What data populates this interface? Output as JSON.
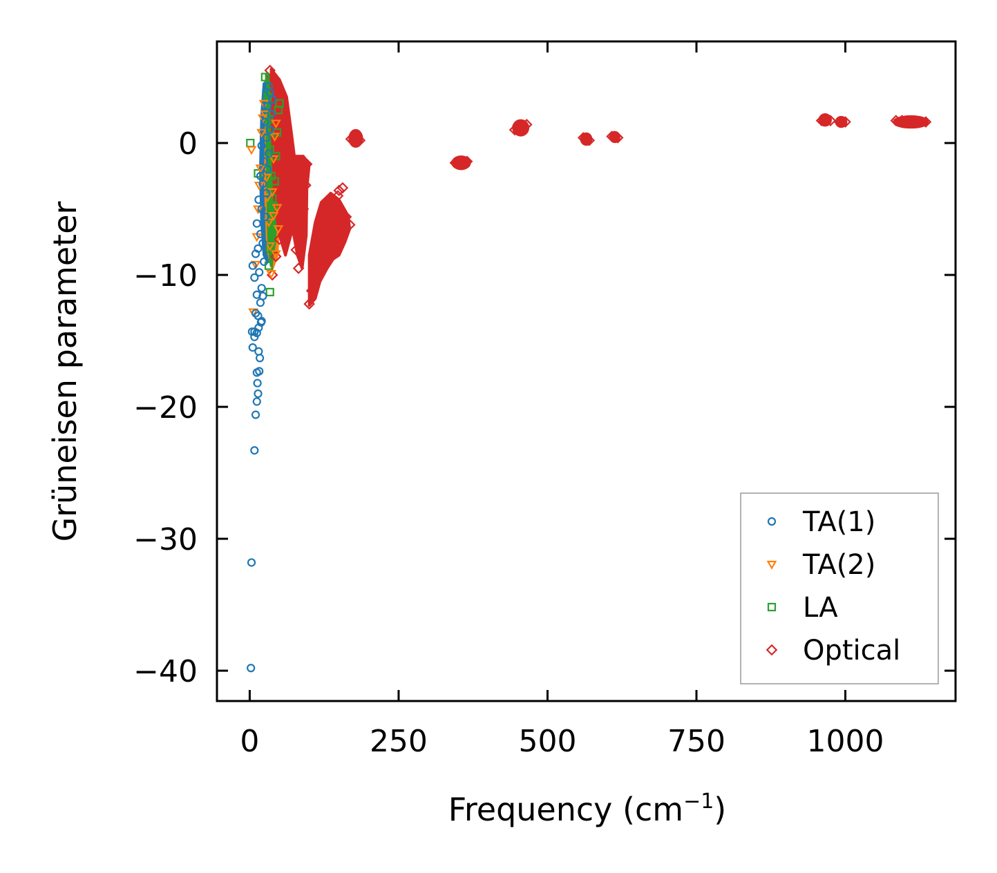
{
  "chart_data": {
    "type": "scatter",
    "title": "",
    "xlabel": "Frequency (cm",
    "xlabel_sup": "−1",
    "xlabel_suffix": ")",
    "ylabel": "Grüneisen parameter",
    "xlim": [
      -55,
      1185
    ],
    "ylim": [
      -42.3,
      7.7
    ],
    "xticks": [
      0,
      250,
      500,
      750,
      1000
    ],
    "xtick_labels": [
      "0",
      "250",
      "500",
      "750",
      "1000"
    ],
    "yticks": [
      0,
      -10,
      -20,
      -30,
      -40
    ],
    "ytick_labels": [
      "0",
      "−10",
      "−20",
      "−30",
      "−40"
    ],
    "grid": false,
    "legend_position": "lower-right",
    "series": [
      {
        "name": "TA(1)",
        "marker": "circle",
        "color": "#1f77b4",
        "points": [
          [
            2,
            -39.8
          ],
          [
            3,
            -31.8
          ],
          [
            8,
            -23.3
          ],
          [
            10,
            -20.6
          ],
          [
            12,
            -19.6
          ],
          [
            14,
            -19.0
          ],
          [
            13,
            -18.2
          ],
          [
            12,
            -17.4
          ],
          [
            16,
            -17.3
          ],
          [
            17,
            -16.3
          ],
          [
            15,
            -15.8
          ],
          [
            5,
            -15.5
          ],
          [
            8,
            -14.7
          ],
          [
            4,
            -14.3
          ],
          [
            8,
            -14.3
          ],
          [
            12,
            -14.4
          ],
          [
            15,
            -14.0
          ],
          [
            19,
            -13.6
          ],
          [
            20,
            -13.5
          ],
          [
            14,
            -13.1
          ],
          [
            10,
            -12.9
          ],
          [
            18,
            -12.1
          ],
          [
            22,
            -11.6
          ],
          [
            12,
            -11.5
          ],
          [
            20,
            -11.0
          ],
          [
            8,
            -10.2
          ],
          [
            16,
            -9.8
          ],
          [
            5,
            -9.3
          ],
          [
            24,
            -9.0
          ],
          [
            10,
            -8.4
          ],
          [
            14,
            -8.0
          ],
          [
            22,
            -7.6
          ],
          [
            18,
            -6.9
          ],
          [
            12,
            -6.1
          ],
          [
            26,
            -5.6
          ],
          [
            20,
            -5.0
          ],
          [
            15,
            -4.3
          ],
          [
            28,
            -3.8
          ],
          [
            22,
            -3.1
          ],
          [
            18,
            -2.5
          ],
          [
            30,
            -2.0
          ],
          [
            24,
            -1.4
          ],
          [
            32,
            -0.8
          ],
          [
            20,
            -0.2
          ],
          [
            28,
            0.4
          ],
          [
            34,
            1.0
          ],
          [
            26,
            1.6
          ],
          [
            36,
            2.2
          ],
          [
            30,
            2.8
          ],
          [
            38,
            3.3
          ],
          [
            34,
            3.8
          ],
          [
            32,
            4.3
          ]
        ]
      },
      {
        "name": "TA(2)",
        "marker": "triangle-down",
        "color": "#ff7f0e",
        "points": [
          [
            3,
            -0.5
          ],
          [
            6,
            -12.8
          ],
          [
            10,
            -9.2
          ],
          [
            12,
            -7.1
          ],
          [
            14,
            -5.0
          ],
          [
            16,
            -3.2
          ],
          [
            18,
            -1.9
          ],
          [
            20,
            0.8
          ],
          [
            22,
            1.9
          ],
          [
            24,
            3.0
          ],
          [
            26,
            2.2
          ],
          [
            28,
            -2.6
          ],
          [
            30,
            -4.1
          ],
          [
            32,
            -6.0
          ],
          [
            34,
            -7.8
          ],
          [
            36,
            -9.9
          ],
          [
            38,
            -3.7
          ],
          [
            40,
            -1.2
          ],
          [
            42,
            0.5
          ],
          [
            44,
            1.5
          ],
          [
            46,
            -4.9
          ],
          [
            48,
            -6.5
          ],
          [
            44,
            -8.4
          ],
          [
            40,
            -5.5
          ]
        ]
      },
      {
        "name": "LA",
        "marker": "square",
        "color": "#2ca02c",
        "points": [
          [
            1,
            0.0
          ],
          [
            14,
            -2.3
          ],
          [
            26,
            5.0
          ],
          [
            30,
            3.5
          ],
          [
            32,
            1.8
          ],
          [
            34,
            -0.5
          ],
          [
            36,
            -2.5
          ],
          [
            38,
            -4.2
          ],
          [
            36,
            -6.1
          ],
          [
            34,
            -8.0
          ],
          [
            32,
            -9.3
          ],
          [
            34,
            -11.3
          ],
          [
            40,
            -4.8
          ],
          [
            42,
            -2.9
          ],
          [
            44,
            -1.0
          ],
          [
            46,
            0.8
          ],
          [
            48,
            2.5
          ],
          [
            50,
            3.0
          ]
        ]
      },
      {
        "name": "Optical",
        "marker": "diamond",
        "color": "#d62728",
        "points": [
          [
            34,
            5.5
          ],
          [
            38,
            5.0
          ],
          [
            42,
            4.4
          ],
          [
            46,
            3.6
          ],
          [
            50,
            2.8
          ],
          [
            54,
            2.0
          ],
          [
            58,
            1.2
          ],
          [
            38,
            -10.0
          ],
          [
            44,
            -8.6
          ],
          [
            50,
            -7.3
          ],
          [
            54,
            -5.5
          ],
          [
            58,
            -3.8
          ],
          [
            62,
            -2.0
          ],
          [
            66,
            -0.4
          ],
          [
            70,
            -3.0
          ],
          [
            74,
            -5.6
          ],
          [
            78,
            -8.1
          ],
          [
            82,
            -9.5
          ],
          [
            86,
            -7.2
          ],
          [
            90,
            -5.0
          ],
          [
            94,
            -3.2
          ],
          [
            96,
            -1.6
          ],
          [
            100,
            -12.2
          ],
          [
            104,
            -11.2
          ],
          [
            108,
            -10.0
          ],
          [
            112,
            -9.0
          ],
          [
            118,
            -7.8
          ],
          [
            124,
            -6.8
          ],
          [
            130,
            -5.8
          ],
          [
            136,
            -5.0
          ],
          [
            142,
            -4.5
          ],
          [
            148,
            -4.0
          ],
          [
            150,
            -3.6
          ],
          [
            156,
            -3.4
          ],
          [
            162,
            -5.6
          ],
          [
            168,
            -6.2
          ],
          [
            170,
            0.3
          ],
          [
            175,
            0.5
          ],
          [
            180,
            0.4
          ],
          [
            185,
            0.2
          ],
          [
            345,
            -1.5
          ],
          [
            350,
            -1.6
          ],
          [
            355,
            -1.4
          ],
          [
            360,
            -1.5
          ],
          [
            365,
            -1.4
          ],
          [
            445,
            1.0
          ],
          [
            450,
            1.3
          ],
          [
            455,
            1.2
          ],
          [
            460,
            1.1
          ],
          [
            465,
            1.4
          ],
          [
            560,
            0.4
          ],
          [
            565,
            0.3
          ],
          [
            570,
            0.2
          ],
          [
            608,
            0.5
          ],
          [
            612,
            0.5
          ],
          [
            618,
            0.4
          ],
          [
            960,
            1.7
          ],
          [
            968,
            1.8
          ],
          [
            975,
            1.7
          ],
          [
            990,
            1.6
          ],
          [
            1000,
            1.6
          ],
          [
            1085,
            1.7
          ],
          [
            1095,
            1.7
          ],
          [
            1105,
            1.6
          ],
          [
            1115,
            1.6
          ],
          [
            1125,
            1.6
          ],
          [
            1135,
            1.6
          ]
        ]
      }
    ],
    "dense_regions": [
      {
        "series": "TA(1)",
        "color": "#1f77b4",
        "polygon": [
          [
            24,
            4.5
          ],
          [
            32,
            4.8
          ],
          [
            40,
            4.2
          ],
          [
            44,
            1.0
          ],
          [
            42,
            -4.0
          ],
          [
            36,
            -7.5
          ],
          [
            30,
            -9.0
          ],
          [
            24,
            -8.5
          ],
          [
            20,
            -6.0
          ],
          [
            18,
            -2.0
          ],
          [
            20,
            2.0
          ]
        ]
      },
      {
        "series": "TA(2)",
        "color": "#ff7f0e",
        "polygon": [
          [
            30,
            3.8
          ],
          [
            40,
            3.5
          ],
          [
            48,
            1.0
          ],
          [
            50,
            -4.0
          ],
          [
            46,
            -8.5
          ],
          [
            38,
            -9.5
          ],
          [
            30,
            -8.0
          ],
          [
            26,
            -3.0
          ],
          [
            28,
            1.5
          ]
        ]
      },
      {
        "series": "LA",
        "color": "#2ca02c",
        "polygon": [
          [
            28,
            5.2
          ],
          [
            36,
            5.0
          ],
          [
            46,
            3.5
          ],
          [
            50,
            0.5
          ],
          [
            48,
            -3.5
          ],
          [
            42,
            -7.5
          ],
          [
            36,
            -9.3
          ],
          [
            32,
            -7.5
          ],
          [
            30,
            -3.0
          ]
        ]
      },
      {
        "series": "Optical",
        "color": "#d62728",
        "polygon": [
          [
            36,
            5.6
          ],
          [
            50,
            4.8
          ],
          [
            62,
            3.5
          ],
          [
            70,
            0.8
          ],
          [
            75,
            -1.0
          ],
          [
            90,
            -1.0
          ],
          [
            100,
            -1.6
          ],
          [
            96,
            -3.5
          ],
          [
            95,
            -7.0
          ],
          [
            88,
            -9.5
          ],
          [
            80,
            -8.5
          ],
          [
            72,
            -6.5
          ],
          [
            60,
            -8.5
          ],
          [
            50,
            -7.0
          ],
          [
            42,
            -4.5
          ],
          [
            38,
            0.5
          ]
        ]
      },
      {
        "series": "Optical",
        "color": "#d62728",
        "polygon": [
          [
            100,
            -12.3
          ],
          [
            100,
            -8.5
          ],
          [
            110,
            -6.0
          ],
          [
            120,
            -4.5
          ],
          [
            136,
            -3.8
          ],
          [
            150,
            -4.3
          ],
          [
            165,
            -5.5
          ],
          [
            168,
            -6.5
          ],
          [
            160,
            -7.5
          ],
          [
            150,
            -8.5
          ],
          [
            140,
            -8.8
          ],
          [
            130,
            -9.5
          ],
          [
            118,
            -10.5
          ],
          [
            110,
            -11.8
          ]
        ]
      }
    ],
    "clusters": [
      {
        "series": "Optical",
        "color": "#d62728",
        "cx": 178,
        "cy": 0.35,
        "rx": 10,
        "ry": 0.6
      },
      {
        "series": "Optical",
        "color": "#d62728",
        "cx": 355,
        "cy": -1.5,
        "rx": 14,
        "ry": 0.45
      },
      {
        "series": "Optical",
        "color": "#d62728",
        "cx": 455,
        "cy": 1.15,
        "rx": 12,
        "ry": 0.55
      },
      {
        "series": "Optical",
        "color": "#d62728",
        "cx": 565,
        "cy": 0.3,
        "rx": 8,
        "ry": 0.4
      },
      {
        "series": "Optical",
        "color": "#d62728",
        "cx": 613,
        "cy": 0.45,
        "rx": 7,
        "ry": 0.35
      },
      {
        "series": "Optical",
        "color": "#d62728",
        "cx": 966,
        "cy": 1.75,
        "rx": 9,
        "ry": 0.4
      },
      {
        "series": "Optical",
        "color": "#d62728",
        "cx": 993,
        "cy": 1.6,
        "rx": 8,
        "ry": 0.35
      },
      {
        "series": "Optical",
        "color": "#d62728",
        "cx": 1110,
        "cy": 1.6,
        "rx": 28,
        "ry": 0.4
      }
    ],
    "legend": [
      {
        "label": "TA(1)",
        "marker": "circle",
        "color": "#1f77b4"
      },
      {
        "label": "TA(2)",
        "marker": "triangle-down",
        "color": "#ff7f0e"
      },
      {
        "label": "LA",
        "marker": "square",
        "color": "#2ca02c"
      },
      {
        "label": "Optical",
        "marker": "diamond",
        "color": "#d62728"
      }
    ]
  }
}
